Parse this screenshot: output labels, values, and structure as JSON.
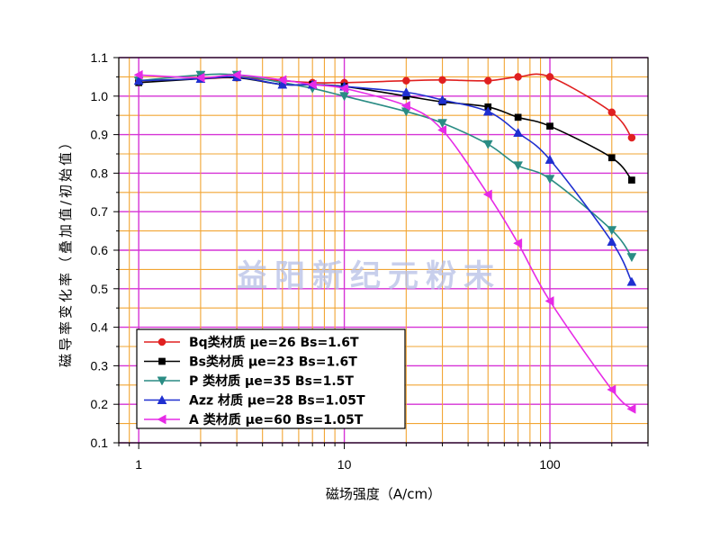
{
  "chart_data": {
    "type": "line",
    "x_scale": "log",
    "xlabel": "磁场强度（A/cm）",
    "ylabel": "磁导率变化率（叠加值/初始值）",
    "xlim": [
      0.8,
      300
    ],
    "ylim": [
      0.1,
      1.1
    ],
    "x_ticks": [
      "1",
      "10",
      "100"
    ],
    "y_ticks": [
      "0.1",
      "0.2",
      "0.3",
      "0.4",
      "0.5",
      "0.6",
      "0.7",
      "0.8",
      "0.9",
      "1.0",
      "1.1"
    ],
    "grid": true,
    "grid_colors": {
      "orange": "#f2a533",
      "magenta": "#d633d6"
    },
    "legend_position": "bottom-left",
    "watermark": "益阳新纪元粉末",
    "series": [
      {
        "name": "Bq类材质  μe=26 Bs=1.6T",
        "color": "#e02020",
        "marker": "circle",
        "x": [
          1,
          2,
          3,
          5,
          7,
          10,
          20,
          30,
          50,
          70,
          100,
          200,
          250
        ],
        "y": [
          1.04,
          1.045,
          1.048,
          1.04,
          1.035,
          1.035,
          1.04,
          1.042,
          1.04,
          1.05,
          1.05,
          0.958,
          0.892
        ]
      },
      {
        "name": "Bs类材质  μe=23 Bs=1.6T",
        "color": "#000000",
        "marker": "square",
        "x": [
          1,
          2,
          3,
          5,
          7,
          10,
          20,
          30,
          50,
          70,
          100,
          200,
          250
        ],
        "y": [
          1.035,
          1.045,
          1.048,
          1.03,
          1.03,
          1.025,
          1.0,
          0.985,
          0.972,
          0.945,
          0.922,
          0.84,
          0.782
        ]
      },
      {
        "name": "P 类材质  μe=35 Bs=1.5T",
        "color": "#2a8c84",
        "marker": "triangle-down",
        "x": [
          1,
          2,
          3,
          5,
          7,
          10,
          20,
          30,
          50,
          70,
          100,
          200,
          250
        ],
        "y": [
          1.04,
          1.055,
          1.055,
          1.035,
          1.02,
          1.0,
          0.96,
          0.93,
          0.875,
          0.82,
          0.785,
          0.652,
          0.582
        ]
      },
      {
        "name": "Azz 材质  μe=28 Bs=1.05T",
        "color": "#1f2fd0",
        "marker": "triangle-up",
        "x": [
          1,
          2,
          3,
          5,
          7,
          10,
          20,
          30,
          50,
          70,
          100,
          200,
          250
        ],
        "y": [
          1.04,
          1.045,
          1.05,
          1.03,
          1.03,
          1.025,
          1.01,
          0.99,
          0.96,
          0.905,
          0.835,
          0.622,
          0.518
        ]
      },
      {
        "name": "A 类材质  μe=60 Bs=1.05T",
        "color": "#e62ae6",
        "marker": "triangle-left",
        "x": [
          1,
          2,
          3,
          5,
          7,
          10,
          20,
          30,
          50,
          70,
          100,
          200,
          250
        ],
        "y": [
          1.055,
          1.048,
          1.055,
          1.042,
          1.03,
          1.02,
          0.975,
          0.912,
          0.745,
          0.618,
          0.468,
          0.238,
          0.188
        ]
      }
    ]
  }
}
